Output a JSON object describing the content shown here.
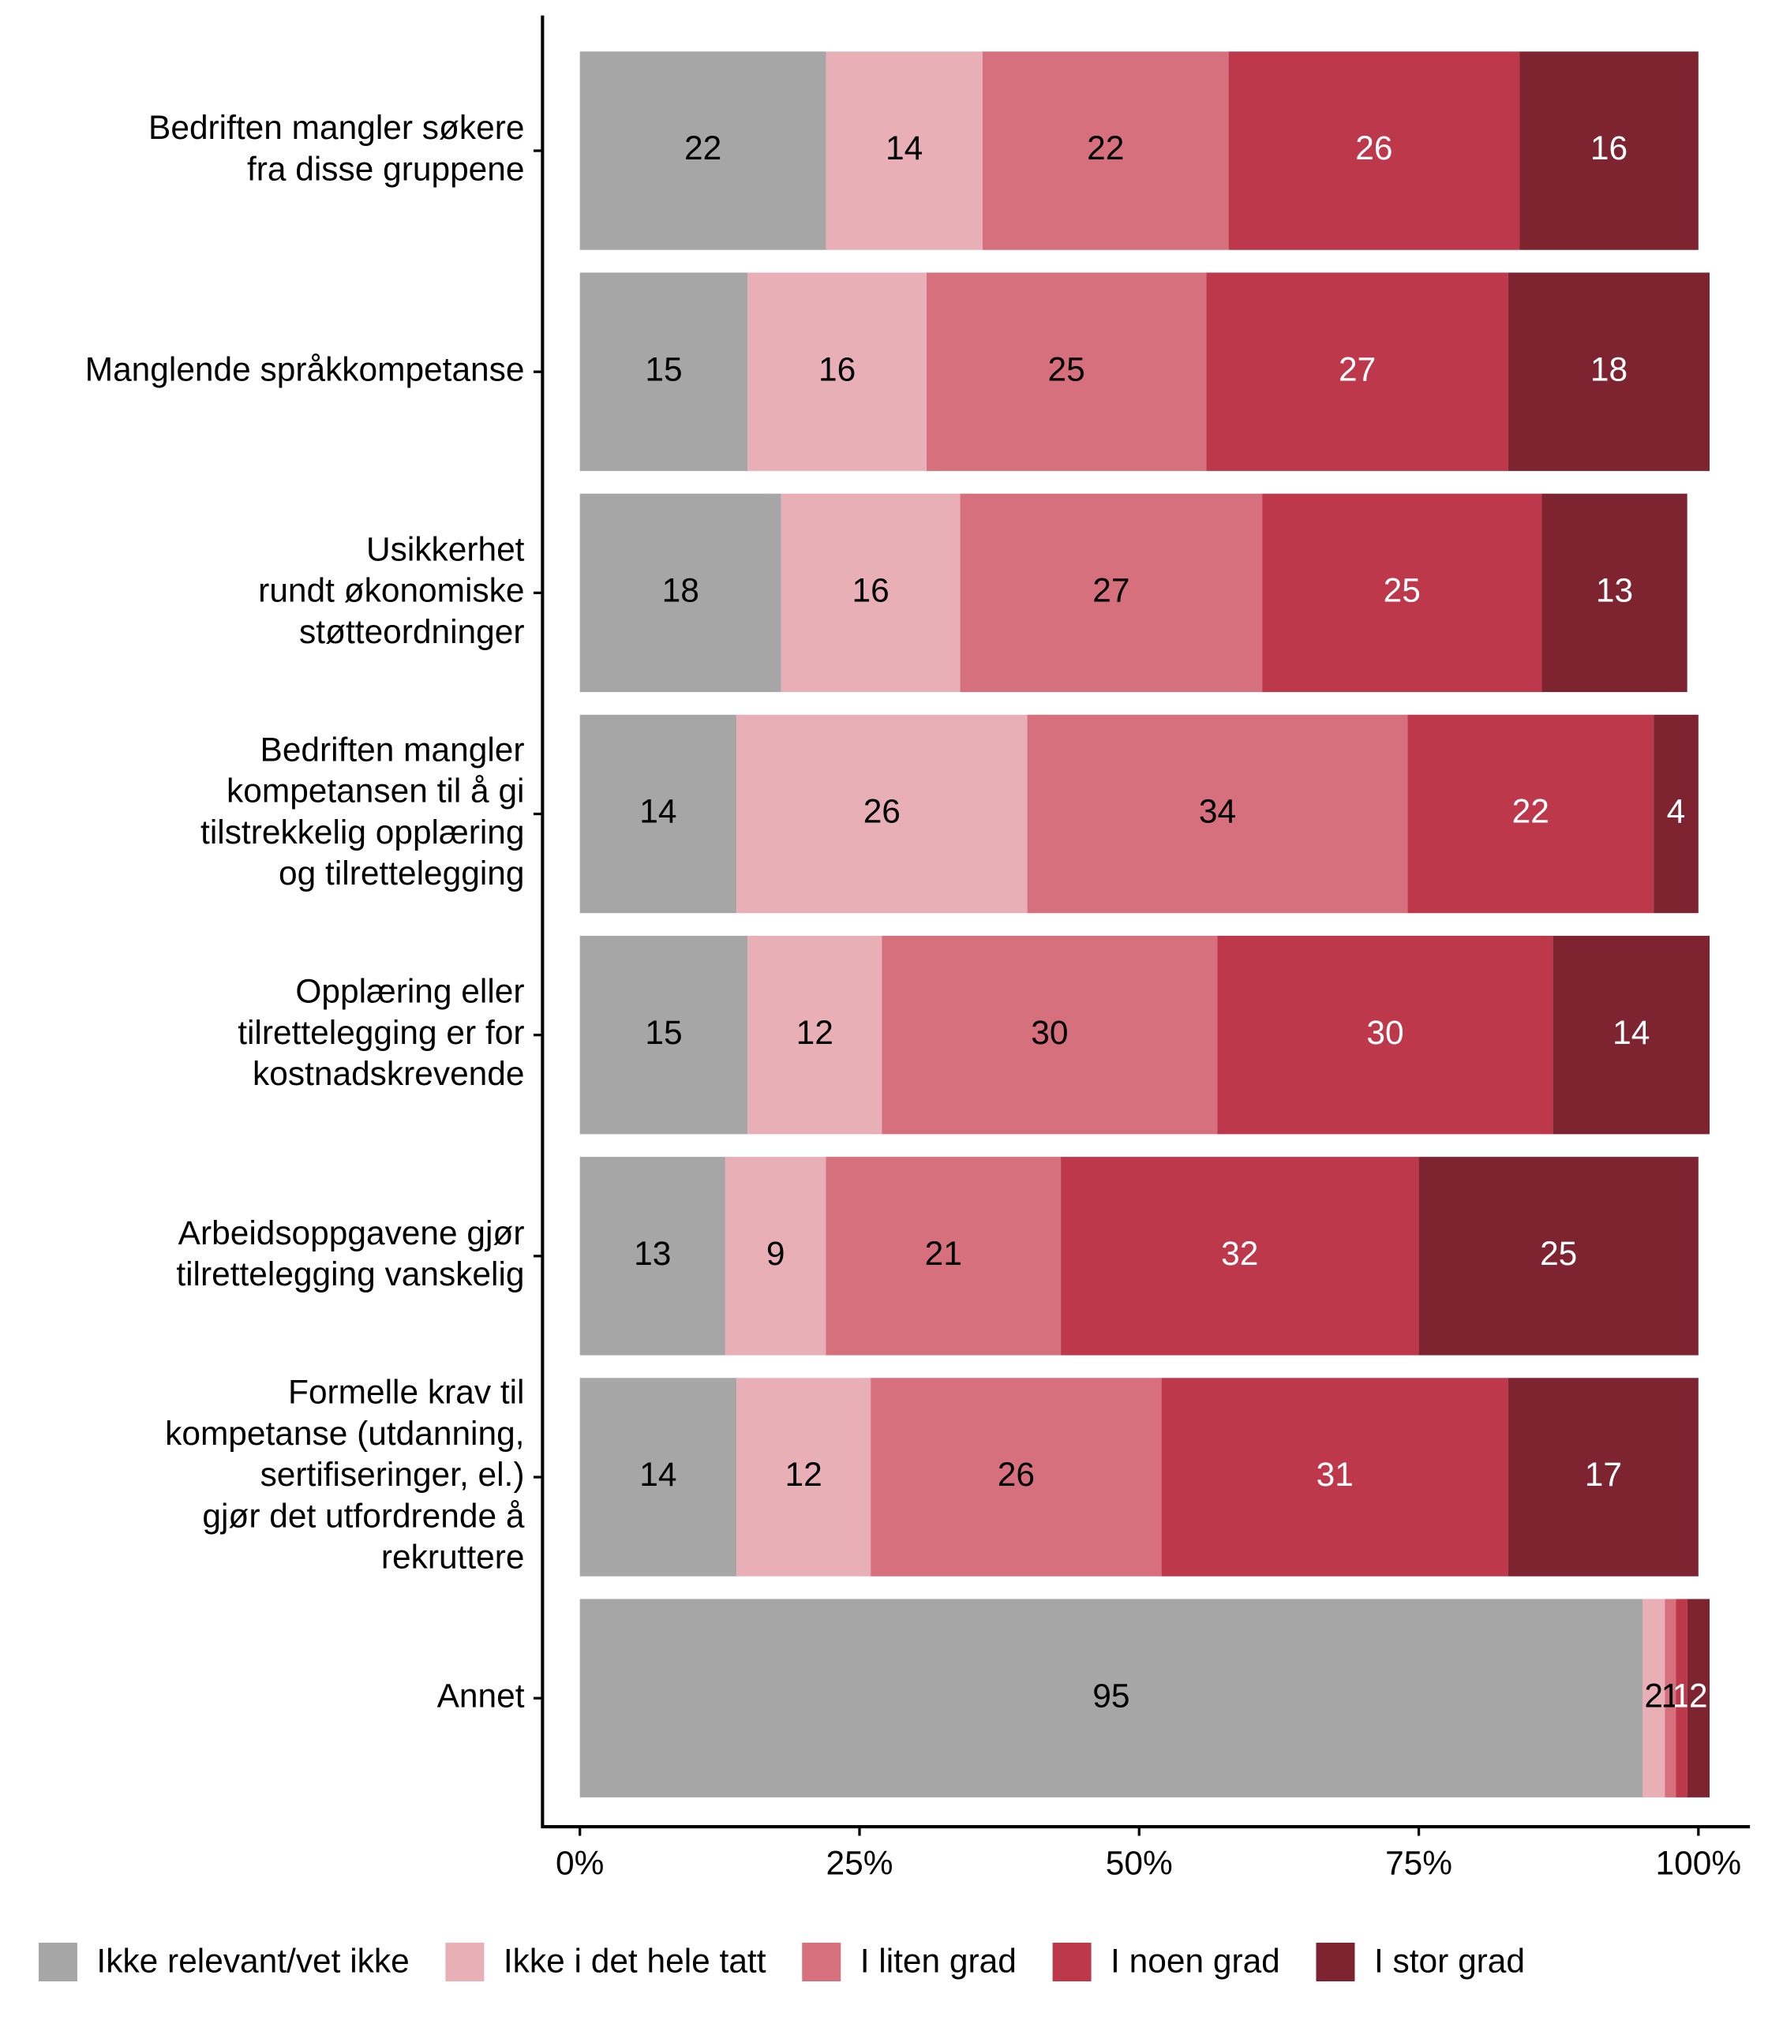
{
  "chart_data": {
    "type": "stacked-barh",
    "categories": [
      [
        "Bedriften mangler søkere",
        "fra disse gruppene"
      ],
      [
        "Manglende språkkompetanse"
      ],
      [
        "Usikkerhet",
        "rundt økonomiske",
        "støtteordninger"
      ],
      [
        "Bedriften mangler",
        "kompetansen til å gi",
        "tilstrekkelig opplæring",
        "og tilrettelegging"
      ],
      [
        "Opplæring eller",
        "tilrettelegging er for",
        "kostnadskrevende"
      ],
      [
        "Arbeidsoppgavene gjør",
        "tilrettelegging vanskelig"
      ],
      [
        "Formelle krav til",
        "kompetanse (utdanning,",
        "sertifiseringer, el.)",
        "gjør det utfordrende å",
        "rekruttere"
      ],
      [
        "Annet"
      ]
    ],
    "series": [
      {
        "name": "Ikke relevant/vet ikke",
        "color": "#a6a6a6",
        "label_color": "#000000",
        "values": [
          22,
          15,
          18,
          14,
          15,
          13,
          14,
          95
        ]
      },
      {
        "name": "Ikke i det hele tatt",
        "color": "#e8b0b6",
        "label_color": "#000000",
        "values": [
          14,
          16,
          16,
          26,
          12,
          9,
          12,
          2
        ]
      },
      {
        "name": "I liten grad",
        "color": "#d6707c",
        "label_color": "#000000",
        "values": [
          22,
          25,
          27,
          34,
          30,
          21,
          26,
          1
        ]
      },
      {
        "name": "I noen grad",
        "color": "#bd384b",
        "label_color": "#ffffff",
        "values": [
          26,
          27,
          25,
          22,
          30,
          32,
          31,
          1
        ]
      },
      {
        "name": "I stor grad",
        "color": "#7d2430",
        "label_color": "#ffffff",
        "values": [
          16,
          18,
          13,
          4,
          14,
          25,
          17,
          2
        ]
      }
    ],
    "xlim": [
      0,
      100
    ],
    "xticks": [
      {
        "value": 0,
        "label": "0%"
      },
      {
        "value": 25,
        "label": "25%"
      },
      {
        "value": 50,
        "label": "50%"
      },
      {
        "value": 75,
        "label": "75%"
      },
      {
        "value": 100,
        "label": "100%"
      }
    ],
    "legend": "bottom"
  }
}
